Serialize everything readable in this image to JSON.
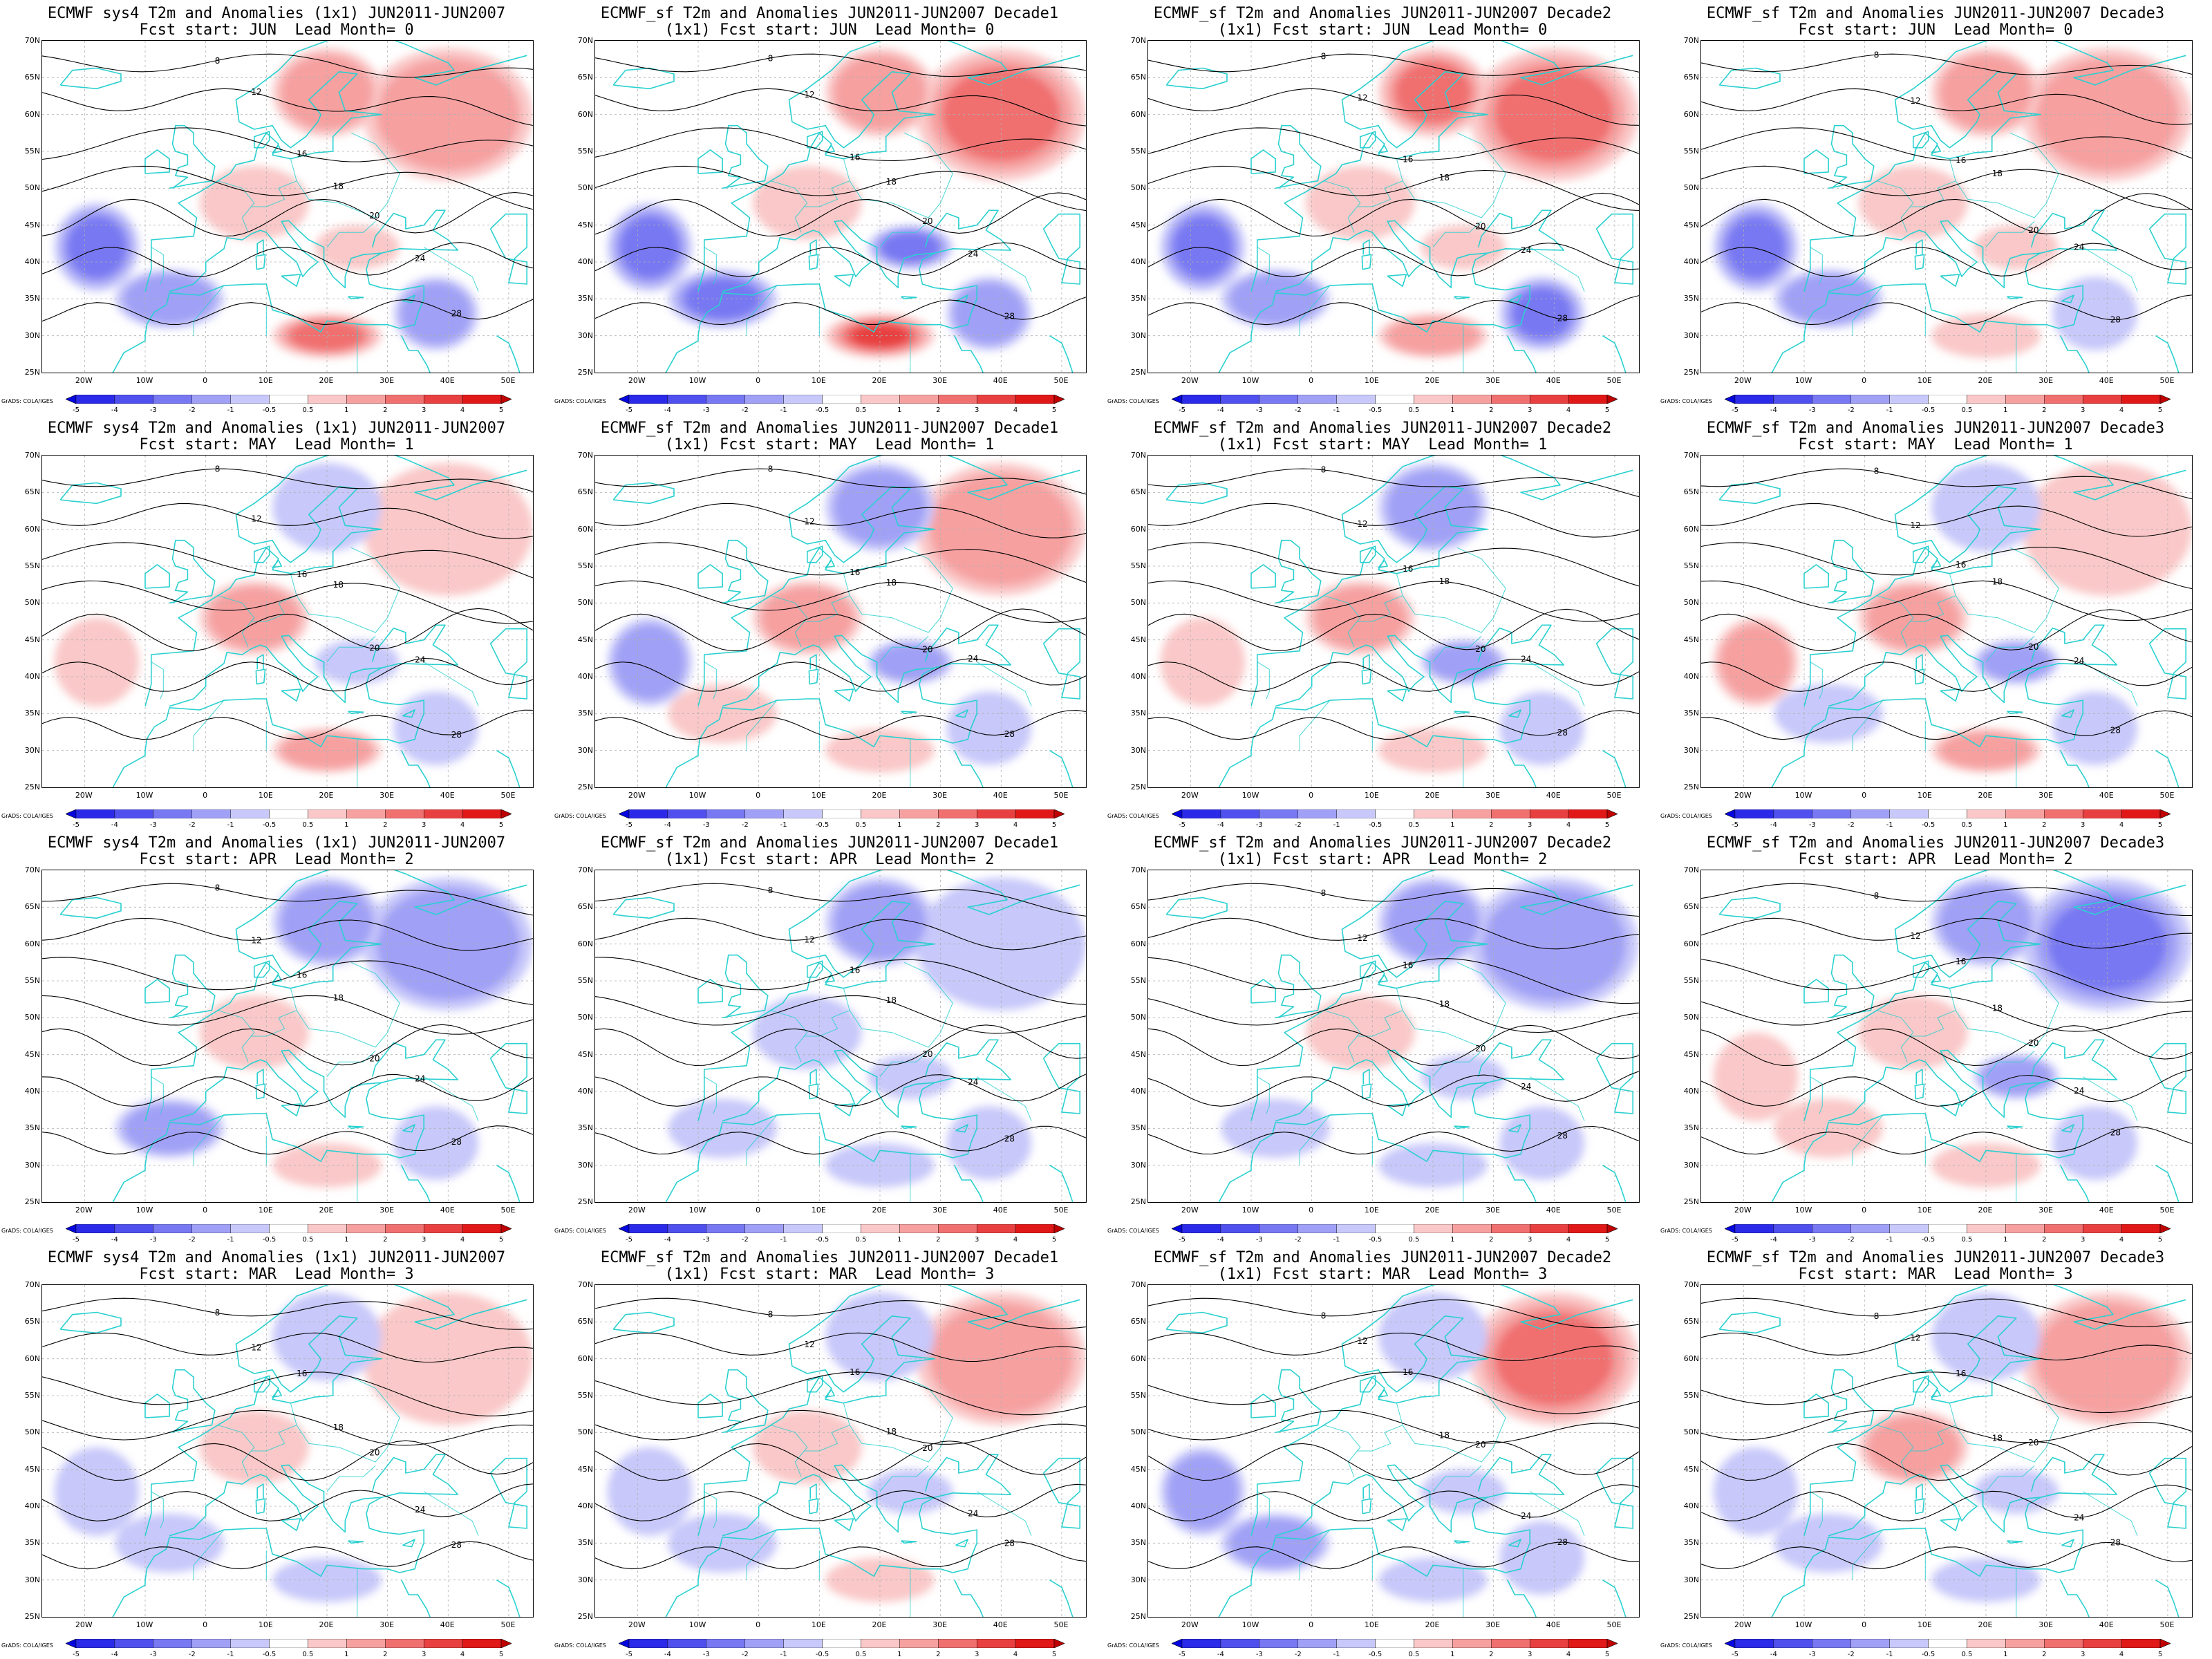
{
  "panels": [
    {
      "title1": "ECMWF sys4 T2m and Anomalies (1x1) JUN2011-JUN2007",
      "title2": "Fcst start: JUN  Lead Month= 0",
      "pattern": [
        1.8,
        1.5,
        0.6,
        -1.5,
        0.5,
        -2.5,
        2.0,
        -1.0
      ]
    },
    {
      "title1": "ECMWF_sf T2m and Anomalies JUN2011-JUN2007 Decade1",
      "title2": "(1x1) Fcst start: JUN  Lead Month= 0",
      "pattern": [
        2.5,
        1.8,
        0.8,
        -2.5,
        -2.5,
        -2.0,
        3.0,
        -1.5
      ]
    },
    {
      "title1": "ECMWF_sf T2m and Anomalies JUN2011-JUN2007 Decade2",
      "title2": "(1x1) Fcst start: JUN  Lead Month= 0",
      "pattern": [
        2.5,
        2.2,
        0.8,
        -1.2,
        0.5,
        -2.5,
        1.5,
        -2.0
      ]
    },
    {
      "title1": "ECMWF_sf T2m and Anomalies JUN2011-JUN2007 Decade3",
      "title2": "Fcst start: JUN  Lead Month= 0",
      "pattern": [
        1.4,
        1.3,
        0.7,
        -1.0,
        0.5,
        -2.0,
        0.8,
        -0.8
      ]
    },
    {
      "title1": "ECMWF sys4 T2m and Anomalies (1x1) JUN2011-JUN2007",
      "title2": "Fcst start: MAY  Lead Month= 1",
      "pattern": [
        0.5,
        -0.8,
        1.2,
        0.3,
        -0.8,
        0.8,
        1.0,
        -0.5
      ]
    },
    {
      "title1": "ECMWF_sf T2m and Anomalies JUN2011-JUN2007 Decade1",
      "title2": "(1x1) Fcst start: MAY  Lead Month= 1",
      "pattern": [
        1.2,
        -1.5,
        1.6,
        0.5,
        -1.2,
        -1.3,
        0.8,
        -0.8
      ]
    },
    {
      "title1": "ECMWF_sf T2m and Anomalies JUN2011-JUN2007 Decade2",
      "title2": "(1x1) Fcst start: MAY  Lead Month= 1",
      "pattern": [
        0.3,
        -1.2,
        1.5,
        0.3,
        -1.0,
        0.6,
        0.8,
        -0.6
      ]
    },
    {
      "title1": "ECMWF_sf T2m and Anomalies JUN2011-JUN2007 Decade3",
      "title2": "Fcst start: MAY  Lead Month= 1",
      "pattern": [
        0.5,
        -0.8,
        1.0,
        -0.6,
        -1.0,
        1.0,
        1.5,
        -0.5
      ]
    },
    {
      "title1": "ECMWF sys4 T2m and Anomalies (1x1) JUN2011-JUN2007",
      "title2": "Fcst start: APR  Lead Month= 2",
      "pattern": [
        -1.2,
        -1.5,
        0.6,
        -1.0,
        0.3,
        0.3,
        0.6,
        -0.6
      ]
    },
    {
      "title1": "ECMWF_sf T2m and Anomalies JUN2011-JUN2007 Decade1",
      "title2": "(1x1) Fcst start: APR  Lead Month= 2",
      "pattern": [
        -0.8,
        -1.8,
        -0.5,
        -0.6,
        -0.5,
        0.3,
        -0.5,
        -0.6
      ]
    },
    {
      "title1": "ECMWF_sf T2m and Anomalies JUN2011-JUN2007 Decade2",
      "title2": "(1x1) Fcst start: APR  Lead Month= 2",
      "pattern": [
        -1.5,
        -1.2,
        0.5,
        -0.6,
        -0.6,
        0.4,
        -0.5,
        -0.6
      ]
    },
    {
      "title1": "ECMWF_sf T2m and Anomalies JUN2011-JUN2007 Decade3",
      "title2": "Fcst start: APR  Lead Month= 2",
      "pattern": [
        -2.2,
        -1.5,
        0.7,
        0.8,
        -1.2,
        0.8,
        0.6,
        -0.6
      ]
    },
    {
      "title1": "ECMWF sys4 T2m and Anomalies (1x1) JUN2011-JUN2007",
      "title2": "Fcst start: MAR  Lead Month= 3",
      "pattern": [
        0.6,
        -0.7,
        0.6,
        -0.8,
        0.3,
        -0.8,
        -0.5,
        -0.3
      ]
    },
    {
      "title1": "ECMWF_sf T2m and Anomalies JUN2011-JUN2007 Decade1",
      "title2": "(1x1) Fcst start: MAR  Lead Month= 3",
      "pattern": [
        1.2,
        -0.6,
        0.7,
        -0.6,
        -0.8,
        -0.8,
        0.6,
        -0.3
      ]
    },
    {
      "title1": "ECMWF_sf T2m and Anomalies JUN2011-JUN2007 Decade2",
      "title2": "(1x1) Fcst start: MAR  Lead Month= 3",
      "pattern": [
        2.0,
        -0.6,
        0.3,
        -1.3,
        -0.8,
        -1.2,
        -0.6,
        -0.5
      ]
    },
    {
      "title1": "ECMWF_sf T2m and Anomalies JUN2011-JUN2007 Decade3",
      "title2": "Fcst start: MAR  Lead Month= 3",
      "pattern": [
        1.5,
        -0.8,
        1.2,
        -0.8,
        -0.6,
        -0.6,
        -0.8,
        -0.3
      ]
    }
  ],
  "lat_labels": [
    "70N",
    "65N",
    "60N",
    "55N",
    "50N",
    "45N",
    "40N",
    "35N",
    "30N",
    "25N"
  ],
  "lon_labels": [
    "20W",
    "10W",
    "0",
    "10E",
    "20E",
    "30E",
    "40E",
    "50E"
  ],
  "colorbar": {
    "labels": [
      "-5",
      "-4",
      "-3",
      "-2",
      "-1",
      "-0.5",
      "0.5",
      "1",
      "2",
      "3",
      "4",
      "5"
    ],
    "colors": [
      "#0505e0",
      "#2a2ae8",
      "#5050ee",
      "#7878f2",
      "#a0a0f6",
      "#c8c8fa",
      "#ffffff",
      "#fac8c8",
      "#f6a0a0",
      "#f07070",
      "#e84040",
      "#e01818",
      "#c00000"
    ]
  },
  "credit": "GrADS: COLA/IGES",
  "colors": {
    "coast": "#2ad0d0",
    "contour": "#000000",
    "grid": "#b0b0b0"
  }
}
